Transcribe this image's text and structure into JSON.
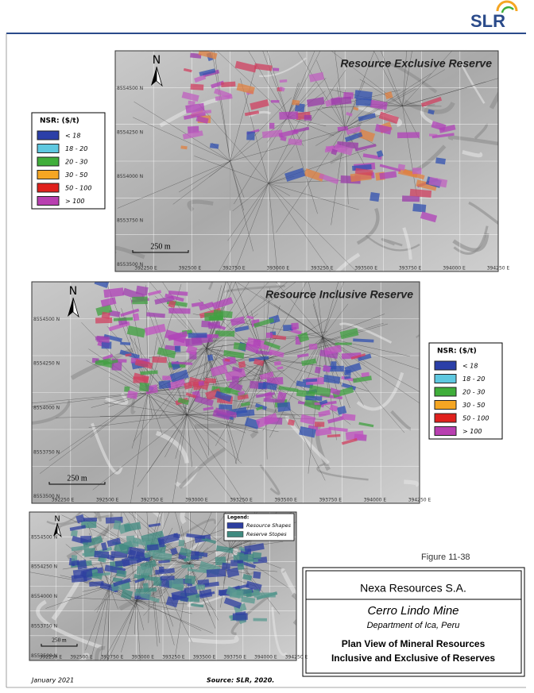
{
  "header": {
    "logo": "SLR"
  },
  "maps": [
    {
      "title": "Resource Exclusive Reserve",
      "north": "N",
      "scale": "250 m",
      "northings": [
        "8554500 N",
        "8554250 N",
        "8554000 N",
        "8553750 N",
        "8553500 N"
      ],
      "eastings": [
        "392250 E",
        "392500 E",
        "392750 E",
        "393000 E",
        "393250 E",
        "393500 E",
        "393750 E",
        "394000 E",
        "394250 E"
      ]
    },
    {
      "title": "Resource Inclusive Reserve",
      "north": "N",
      "scale": "250 m",
      "northings": [
        "8554500 N",
        "8554250 N",
        "8554000 N",
        "8553750 N",
        "8553500 N"
      ],
      "eastings": [
        "392250 E",
        "392500 E",
        "392750 E",
        "393000 E",
        "393250 E",
        "393500 E",
        "393750 E",
        "394000 E",
        "394250 E"
      ]
    },
    {
      "north": "N",
      "scale": "250 m",
      "northings": [
        "8554500 N",
        "8554250 N",
        "8554000 N",
        "8553750 N",
        "8553500 N"
      ],
      "eastings": [
        "392250 E",
        "392500 E",
        "392750 E",
        "393000 E",
        "393250 E",
        "393500 E",
        "393750 E",
        "394000 E",
        "394250 E"
      ]
    }
  ],
  "nsr_legend": {
    "title": "NSR: ($/t)",
    "items": [
      "< 18",
      "18 - 20",
      "20 - 30",
      "30 - 50",
      "50 - 100",
      "> 100"
    ],
    "colors": [
      "#2b3fa8",
      "#5ec8e0",
      "#3fae3a",
      "#f5a623",
      "#e0201c",
      "#b83fb0"
    ]
  },
  "shapes_legend": {
    "title": "Legend:",
    "items": [
      "Resource Shapes",
      "Reserve Stopes"
    ],
    "colors": [
      "#2e3fa0",
      "#3f8a80"
    ]
  },
  "figure": {
    "number": "Figure 11-38",
    "company": "Nexa Resources S.A.",
    "mine": "Cerro Lindo Mine",
    "location": "Department of Ica, Peru",
    "caption": [
      "Plan View of Mineral Resources",
      "Inclusive and Exclusive of Reserves"
    ]
  },
  "footer": {
    "date": "January 2021",
    "source": "Source: SLR, 2020."
  }
}
